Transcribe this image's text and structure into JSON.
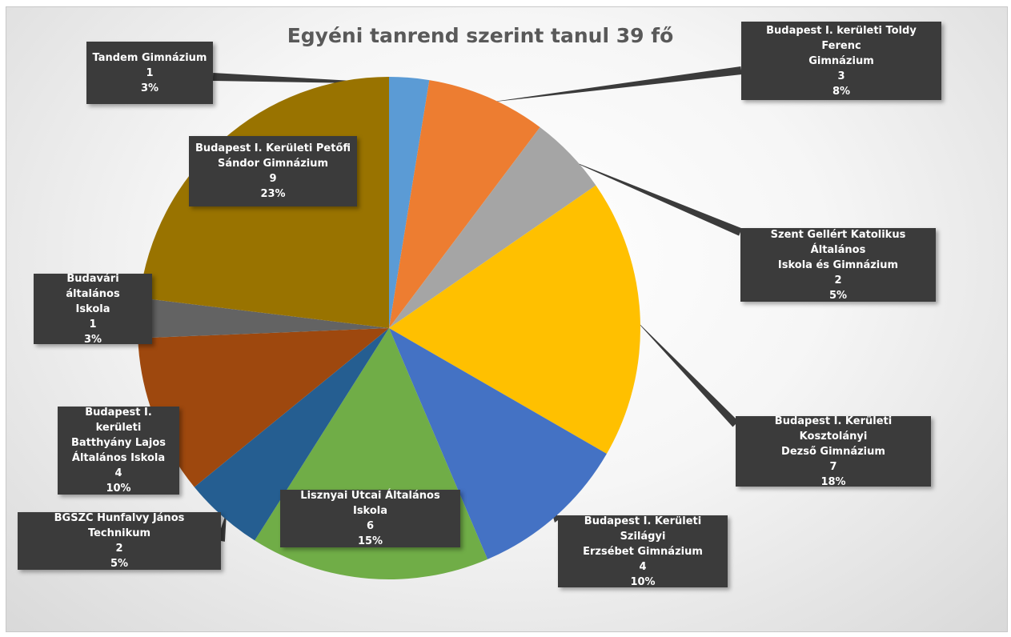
{
  "chart_data": {
    "type": "pie",
    "title": "Egyéni tanrend szerint tanul 39 fő",
    "legend": "none",
    "slices": [
      {
        "name": "Tandem Gimnázium",
        "value": 1,
        "percent": "3%",
        "color": "#5b9bd5"
      },
      {
        "name": "Budapest I. kerületi Toldy Ferenc Gimnázium",
        "value": 3,
        "percent": "8%",
        "color": "#ed7d31"
      },
      {
        "name": "Szent Gellért Katolikus Általános Iskola és Gimnázium",
        "value": 2,
        "percent": "5%",
        "color": "#a5a5a5"
      },
      {
        "name": "Budapest I. Kerületi Kosztolányi Dezső Gimnázium",
        "value": 7,
        "percent": "18%",
        "color": "#ffc000"
      },
      {
        "name": "Budapest I. Kerületi Szilágyi Erzsébet Gimnázium",
        "value": 4,
        "percent": "10%",
        "color": "#4472c4"
      },
      {
        "name": "Lisznyai Utcai Általános Iskola",
        "value": 6,
        "percent": "15%",
        "color": "#70ad47"
      },
      {
        "name": "BGSZC Hunfalvy János Technikum",
        "value": 2,
        "percent": "5%",
        "color": "#255e91"
      },
      {
        "name": "Budapest I. kerületi Batthyány Lajos Általános Iskola",
        "value": 4,
        "percent": "10%",
        "color": "#9e480e"
      },
      {
        "name": "Budavári általános Iskola",
        "value": 1,
        "percent": "3%",
        "color": "#636363"
      },
      {
        "name": "Budapest I. Kerületi Petőfi Sándor Gimnázium",
        "value": 9,
        "percent": "23%",
        "color": "#997300"
      }
    ]
  },
  "labels": [
    {
      "lines": [
        "Tandem Gimnázium"
      ],
      "value": "1",
      "percent": "3%"
    },
    {
      "lines": [
        "Budapest I. kerületi Toldy Ferenc",
        "Gimnázium"
      ],
      "value": "3",
      "percent": "8%"
    },
    {
      "lines": [
        "Szent Gellért Katolikus Általános",
        "Iskola és Gimnázium"
      ],
      "value": "2",
      "percent": "5%"
    },
    {
      "lines": [
        "Budapest I. Kerületi Kosztolányi",
        "Dezső Gimnázium"
      ],
      "value": "7",
      "percent": "18%"
    },
    {
      "lines": [
        "Budapest I. Kerületi Szilágyi",
        "Erzsébet Gimnázium"
      ],
      "value": "4",
      "percent": "10%"
    },
    {
      "lines": [
        "Lisznyai Utcai Általános Iskola"
      ],
      "value": "6",
      "percent": "15%"
    },
    {
      "lines": [
        "BGSZC Hunfalvy János Technikum"
      ],
      "value": "2",
      "percent": "5%"
    },
    {
      "lines": [
        "Budapest I. kerületi",
        "Batthyány Lajos",
        "Általános Iskola"
      ],
      "value": "4",
      "percent": "10%"
    },
    {
      "lines": [
        "Budavári általános",
        "Iskola"
      ],
      "value": "1",
      "percent": "3%"
    },
    {
      "lines": [
        "Budapest I. Kerületi Petőfi",
        "Sándor Gimnázium"
      ],
      "value": "9",
      "percent": "23%"
    }
  ]
}
